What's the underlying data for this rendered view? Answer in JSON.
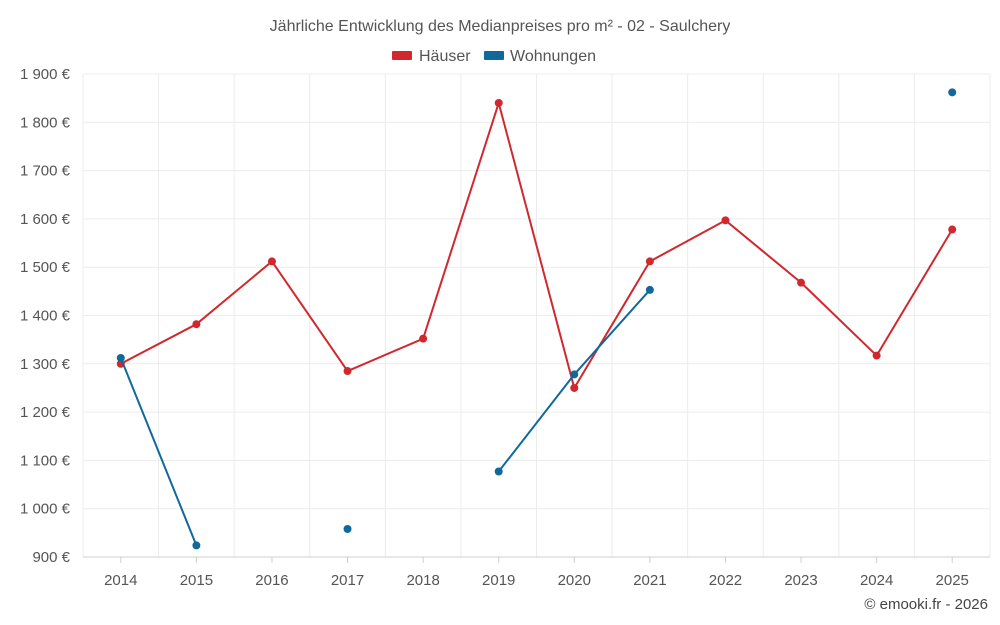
{
  "chart_data": {
    "type": "line",
    "title": "Jährliche Entwicklung des Medianpreises pro m² - 02 - Saulchery",
    "categories": [
      "2014",
      "2015",
      "2016",
      "2017",
      "2018",
      "2019",
      "2020",
      "2021",
      "2022",
      "2023",
      "2024",
      "2025"
    ],
    "ylim": [
      900,
      1900
    ],
    "yticks": [
      900,
      1000,
      1100,
      1200,
      1300,
      1400,
      1500,
      1600,
      1700,
      1800,
      1900
    ],
    "ytick_labels": [
      "900 €",
      "1 000 €",
      "1 100 €",
      "1 200 €",
      "1 300 €",
      "1 400 €",
      "1 500 €",
      "1 600 €",
      "1 700 €",
      "1 800 €",
      "1 900 €"
    ],
    "xlabel": "",
    "ylabel": "",
    "grid": true,
    "legend_position": "top-center",
    "series": [
      {
        "name": "Häuser",
        "color": "#d0282e",
        "values": [
          1300,
          1382,
          1512,
          1285,
          1352,
          1840,
          1250,
          1512,
          1597,
          1468,
          1317,
          1578
        ]
      },
      {
        "name": "Wohnungen",
        "color": "#11699b",
        "values": [
          1312,
          924,
          null,
          958,
          null,
          1077,
          1278,
          1453,
          null,
          null,
          null,
          1862
        ]
      }
    ]
  },
  "credit": "© emooki.fr - 2026"
}
